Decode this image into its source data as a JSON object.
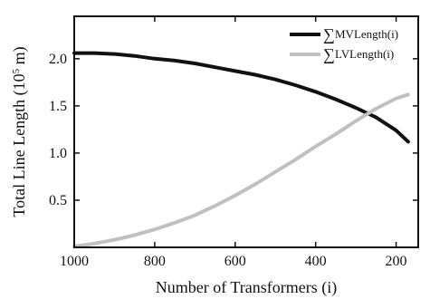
{
  "chart_data": {
    "type": "line",
    "xlabel": "Number of Transformers (i)",
    "ylabel": "Total Line Length (10",
    "ylabel_exp": "5",
    "ylabel_unit": " m)",
    "xlim": [
      1000,
      145
    ],
    "ylim": [
      0,
      2.45
    ],
    "x_reversed": true,
    "xticks": [
      1000,
      800,
      600,
      400,
      200
    ],
    "xtick_labels": [
      "1000",
      "800",
      "600",
      "400",
      "200"
    ],
    "yticks": [
      0.5,
      1.0,
      1.5,
      2.0
    ],
    "ytick_labels": [
      "0.5",
      "1.0",
      "1.5",
      "2.0"
    ],
    "legend_position": "top-right",
    "series": [
      {
        "name": "∑MVLength(i)",
        "legend_sigma": "∑",
        "legend_label": "MVLength(i)",
        "color": "#111111",
        "x": [
          1000,
          950,
          900,
          850,
          800,
          750,
          700,
          650,
          600,
          550,
          500,
          450,
          400,
          350,
          300,
          250,
          200,
          170
        ],
        "y": [
          2.06,
          2.06,
          2.05,
          2.03,
          2.0,
          1.98,
          1.95,
          1.91,
          1.87,
          1.83,
          1.78,
          1.72,
          1.65,
          1.57,
          1.48,
          1.38,
          1.24,
          1.12
        ]
      },
      {
        "name": "∑LVLength(i)",
        "legend_sigma": "∑",
        "legend_label": "LVLength(i)",
        "color": "#c0c0c0",
        "x": [
          1000,
          950,
          900,
          850,
          800,
          750,
          700,
          650,
          600,
          550,
          500,
          450,
          400,
          350,
          300,
          250,
          200,
          170
        ],
        "y": [
          0.01,
          0.04,
          0.08,
          0.13,
          0.19,
          0.26,
          0.34,
          0.44,
          0.55,
          0.67,
          0.8,
          0.93,
          1.07,
          1.2,
          1.34,
          1.47,
          1.58,
          1.62
        ]
      }
    ]
  }
}
